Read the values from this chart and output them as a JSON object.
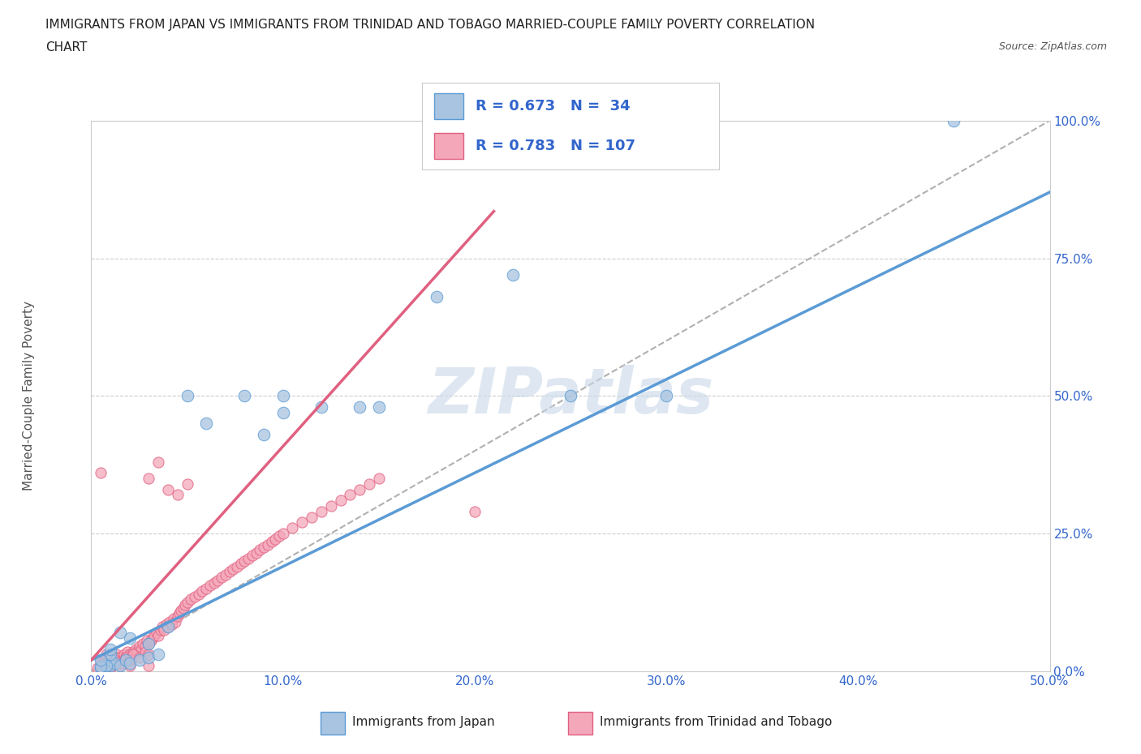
{
  "title_line1": "IMMIGRANTS FROM JAPAN VS IMMIGRANTS FROM TRINIDAD AND TOBAGO MARRIED-COUPLE FAMILY POVERTY CORRELATION",
  "title_line2": "CHART",
  "source_text": "Source: ZipAtlas.com",
  "ylabel": "Married-Couple Family Poverty",
  "xlim": [
    0,
    0.5
  ],
  "ylim": [
    0,
    1.0
  ],
  "xtick_labels": [
    "0.0%",
    "10.0%",
    "20.0%",
    "30.0%",
    "40.0%",
    "50.0%"
  ],
  "xtick_vals": [
    0,
    0.1,
    0.2,
    0.3,
    0.4,
    0.5
  ],
  "ytick_labels": [
    "0.0%",
    "25.0%",
    "50.0%",
    "75.0%",
    "100.0%"
  ],
  "ytick_vals": [
    0,
    0.25,
    0.5,
    0.75,
    1.0
  ],
  "japan_color": "#a8c4e0",
  "japan_edge_color": "#5b9bd5",
  "trinidad_color": "#f4a7b9",
  "trinidad_edge_color": "#e06080",
  "japan_trend_color": "#5b9bd5",
  "trinidad_trend_color": "#e06080",
  "diag_line_color": "#b0b0b0",
  "legend_japan_label": "Immigrants from Japan",
  "legend_trinidad_label": "Immigrants from Trinidad and Tobago",
  "R_japan": 0.673,
  "N_japan": 34,
  "R_trinidad": 0.783,
  "N_trinidad": 107,
  "watermark_text": "ZIPatlas",
  "watermark_color": "#c8d8e8",
  "japan_x": [
    0.005,
    0.008,
    0.01,
    0.01,
    0.012,
    0.015,
    0.018,
    0.02,
    0.025,
    0.03,
    0.035,
    0.008,
    0.01,
    0.005,
    0.04,
    0.05,
    0.06,
    0.08,
    0.09,
    0.1,
    0.1,
    0.12,
    0.14,
    0.15,
    0.18,
    0.22,
    0.25,
    0.3,
    0.45,
    0.02,
    0.03,
    0.01,
    0.015,
    0.005
  ],
  "japan_y": [
    0.005,
    0.01,
    0.01,
    0.02,
    0.015,
    0.01,
    0.02,
    0.015,
    0.02,
    0.025,
    0.03,
    0.01,
    0.03,
    0.008,
    0.08,
    0.5,
    0.45,
    0.5,
    0.43,
    0.47,
    0.5,
    0.48,
    0.48,
    0.48,
    0.68,
    0.72,
    0.5,
    0.5,
    1.0,
    0.06,
    0.05,
    0.04,
    0.07,
    0.02
  ],
  "trinidad_x": [
    0.003,
    0.005,
    0.005,
    0.006,
    0.007,
    0.008,
    0.008,
    0.009,
    0.01,
    0.01,
    0.01,
    0.011,
    0.012,
    0.013,
    0.014,
    0.015,
    0.015,
    0.016,
    0.017,
    0.018,
    0.019,
    0.02,
    0.02,
    0.021,
    0.022,
    0.023,
    0.024,
    0.025,
    0.026,
    0.027,
    0.028,
    0.029,
    0.03,
    0.03,
    0.031,
    0.032,
    0.033,
    0.034,
    0.035,
    0.036,
    0.037,
    0.038,
    0.039,
    0.04,
    0.041,
    0.042,
    0.043,
    0.044,
    0.045,
    0.046,
    0.047,
    0.048,
    0.049,
    0.05,
    0.052,
    0.054,
    0.056,
    0.058,
    0.06,
    0.062,
    0.064,
    0.066,
    0.068,
    0.07,
    0.072,
    0.074,
    0.076,
    0.078,
    0.08,
    0.082,
    0.084,
    0.086,
    0.088,
    0.09,
    0.092,
    0.094,
    0.096,
    0.098,
    0.1,
    0.105,
    0.11,
    0.115,
    0.12,
    0.125,
    0.13,
    0.135,
    0.14,
    0.145,
    0.15,
    0.005,
    0.008,
    0.01,
    0.012,
    0.015,
    0.018,
    0.02,
    0.022,
    0.025,
    0.028,
    0.03,
    0.2,
    0.03,
    0.035,
    0.04,
    0.045,
    0.05,
    0.005
  ],
  "trinidad_y": [
    0.005,
    0.01,
    0.02,
    0.015,
    0.02,
    0.01,
    0.03,
    0.015,
    0.005,
    0.015,
    0.025,
    0.02,
    0.015,
    0.03,
    0.025,
    0.01,
    0.025,
    0.02,
    0.03,
    0.025,
    0.035,
    0.01,
    0.03,
    0.025,
    0.035,
    0.04,
    0.035,
    0.045,
    0.04,
    0.05,
    0.045,
    0.055,
    0.01,
    0.05,
    0.055,
    0.06,
    0.065,
    0.07,
    0.065,
    0.075,
    0.08,
    0.075,
    0.085,
    0.08,
    0.09,
    0.085,
    0.095,
    0.09,
    0.1,
    0.105,
    0.11,
    0.115,
    0.12,
    0.125,
    0.13,
    0.135,
    0.14,
    0.145,
    0.15,
    0.155,
    0.16,
    0.165,
    0.17,
    0.175,
    0.18,
    0.185,
    0.19,
    0.195,
    0.2,
    0.205,
    0.21,
    0.215,
    0.22,
    0.225,
    0.23,
    0.235,
    0.24,
    0.245,
    0.25,
    0.26,
    0.27,
    0.28,
    0.29,
    0.3,
    0.31,
    0.32,
    0.33,
    0.34,
    0.35,
    0.005,
    0.015,
    0.01,
    0.02,
    0.015,
    0.025,
    0.02,
    0.03,
    0.025,
    0.035,
    0.03,
    0.29,
    0.35,
    0.38,
    0.33,
    0.32,
    0.34,
    0.36
  ]
}
